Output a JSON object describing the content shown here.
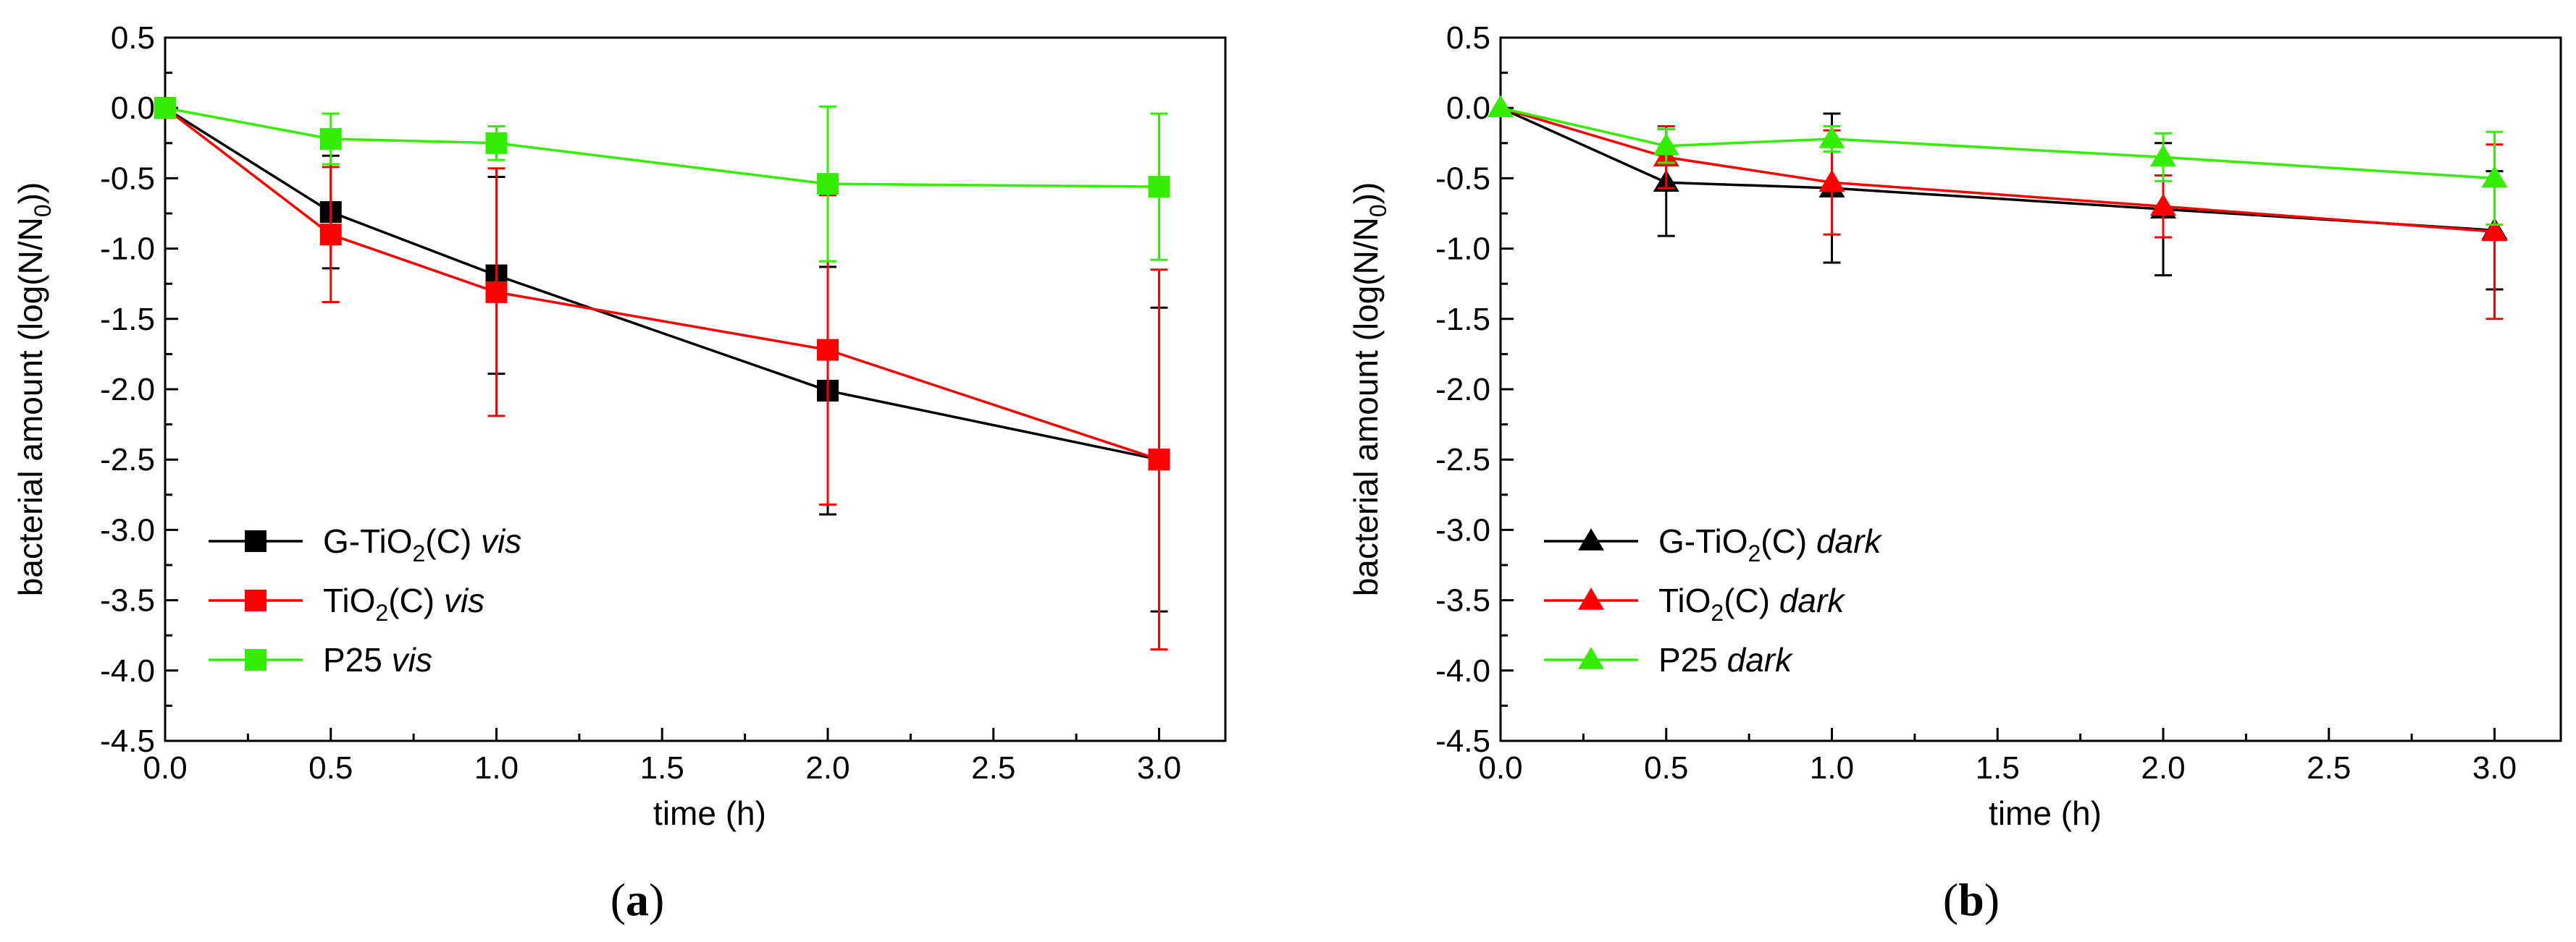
{
  "chart_data": [
    {
      "type": "line",
      "panel_label": "a",
      "title": "",
      "xlabel": "time (h)",
      "ylabel_text": "bacterial amount (log(N/N",
      "ylabel_sub": "0",
      "ylabel_end": "))",
      "xlim": [
        0.0,
        3.2
      ],
      "ylim": [
        -4.5,
        0.5
      ],
      "xticks": [
        0.0,
        0.5,
        1.0,
        1.5,
        2.0,
        2.5,
        3.0
      ],
      "xtick_labels": [
        "0.0",
        "0.5",
        "1.0",
        "1.5",
        "2.0",
        "2.5",
        "3.0"
      ],
      "yticks": [
        0.5,
        0.0,
        -0.5,
        -1.0,
        -1.5,
        -2.0,
        -2.5,
        -3.0,
        -3.5,
        -4.0,
        -4.5
      ],
      "ytick_labels": [
        "0.5",
        "0.0",
        "-0.5",
        "-1.0",
        "-1.5",
        "-2.0",
        "-2.5",
        "-3.0",
        "-3.5",
        "-4.0",
        "-4.5"
      ],
      "marker": "square",
      "legend_position": "lower-left",
      "series": [
        {
          "id": "g-tio2-c-vis",
          "name_prefix": "G-TiO",
          "name_sub": "2",
          "name_mid": "(C) ",
          "name_italic": "vis",
          "color": "#000000",
          "x": [
            0.0,
            0.5,
            1.0,
            2.0,
            3.0
          ],
          "y": [
            0.0,
            -0.74,
            -1.19,
            -2.01,
            -2.5
          ],
          "err": [
            0.0,
            0.4,
            0.7,
            0.88,
            1.08
          ]
        },
        {
          "id": "tio2-c-vis",
          "name_prefix": "TiO",
          "name_sub": "2",
          "name_mid": "(C) ",
          "name_italic": "vis",
          "color": "#ff0000",
          "x": [
            0.0,
            0.5,
            1.0,
            2.0,
            3.0
          ],
          "y": [
            0.0,
            -0.9,
            -1.31,
            -1.72,
            -2.5
          ],
          "err": [
            0.0,
            0.48,
            0.88,
            1.1,
            1.35
          ]
        },
        {
          "id": "p25-vis",
          "name_prefix": "P25 ",
          "name_sub": "",
          "name_mid": "",
          "name_italic": "vis",
          "color": "#33ee00",
          "x": [
            0.0,
            0.5,
            1.0,
            2.0,
            3.0
          ],
          "y": [
            0.0,
            -0.22,
            -0.25,
            -0.54,
            -0.56
          ],
          "err": [
            0.0,
            0.18,
            0.12,
            0.55,
            0.52
          ]
        }
      ]
    },
    {
      "type": "line",
      "panel_label": "b",
      "title": "",
      "xlabel": "time (h)",
      "ylabel_text": "bacterial amount (log(N/N",
      "ylabel_sub": "0",
      "ylabel_end": "))",
      "xlim": [
        0.0,
        3.2
      ],
      "ylim": [
        -4.5,
        0.5
      ],
      "xticks": [
        0.0,
        0.5,
        1.0,
        1.5,
        2.0,
        2.5,
        3.0
      ],
      "xtick_labels": [
        "0.0",
        "0.5",
        "1.0",
        "1.5",
        "2.0",
        "2.5",
        "3.0"
      ],
      "yticks": [
        0.5,
        0.0,
        -0.5,
        -1.0,
        -1.5,
        -2.0,
        -2.5,
        -3.0,
        -3.5,
        -4.0,
        -4.5
      ],
      "ytick_labels": [
        "0.5",
        "0.0",
        "-0.5",
        "-1.0",
        "-1.5",
        "-2.0",
        "-2.5",
        "-3.0",
        "-3.5",
        "-4.0",
        "-4.5"
      ],
      "marker": "triangle",
      "legend_position": "lower-left",
      "series": [
        {
          "id": "g-tio2-c-dark",
          "name_prefix": "G-TiO",
          "name_sub": "2",
          "name_mid": "(C) ",
          "name_italic": "dark",
          "color": "#000000",
          "x": [
            0.0,
            0.5,
            1.0,
            2.0,
            3.0
          ],
          "y": [
            0.0,
            -0.53,
            -0.57,
            -0.72,
            -0.87
          ],
          "err": [
            0.0,
            0.38,
            0.53,
            0.47,
            0.42
          ]
        },
        {
          "id": "tio2-c-dark",
          "name_prefix": "TiO",
          "name_sub": "2",
          "name_mid": "(C) ",
          "name_italic": "dark",
          "color": "#ff0000",
          "x": [
            0.0,
            0.5,
            1.0,
            2.0,
            3.0
          ],
          "y": [
            0.0,
            -0.35,
            -0.53,
            -0.7,
            -0.88
          ],
          "err": [
            0.0,
            0.22,
            0.37,
            0.22,
            0.62
          ]
        },
        {
          "id": "p25-dark",
          "name_prefix": "P25 ",
          "name_sub": "",
          "name_mid": "",
          "name_italic": "dark",
          "color": "#33ee00",
          "x": [
            0.0,
            0.5,
            1.0,
            2.0,
            3.0
          ],
          "y": [
            0.0,
            -0.27,
            -0.22,
            -0.35,
            -0.5
          ],
          "err": [
            0.0,
            0.12,
            0.09,
            0.17,
            0.33
          ]
        }
      ]
    }
  ]
}
